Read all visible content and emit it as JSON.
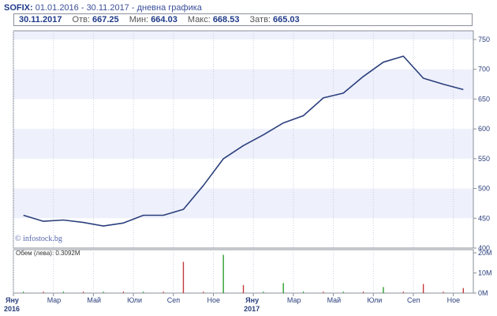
{
  "header": {
    "symbol": "SOFIX:",
    "subtitle": "01.01.2016 - 30.11.2017 - дневна графика"
  },
  "info": {
    "date": "30.11.2017",
    "open_label": "Отв:",
    "open_value": "667.25",
    "min_label": "Мин:",
    "min_value": "664.03",
    "max_label": "Макс:",
    "max_value": "668.53",
    "close_label": "Затв:",
    "close_value": "665.03"
  },
  "watermark": "© infostock.bg",
  "volume_label": "Обем (лева): 0.3092M",
  "colors": {
    "line": "#2b3f7c",
    "band_light": "#ffffff",
    "band_shade": "#eef0fb",
    "grid": "#c8cbe0",
    "axis_text": "#2b3f7c",
    "vol_up": "#2e9e2e",
    "vol_down": "#c23a3a"
  },
  "chart_data": [
    {
      "type": "line",
      "title": "SOFIX",
      "x": [
        "2016-01",
        "2016-02",
        "2016-03",
        "2016-04",
        "2016-05",
        "2016-06",
        "2016-07",
        "2016-08",
        "2016-09",
        "2016-10",
        "2016-11",
        "2016-12",
        "2017-01",
        "2017-02",
        "2017-03",
        "2017-04",
        "2017-05",
        "2017-06",
        "2017-07",
        "2017-08",
        "2017-09",
        "2017-10",
        "2017-11"
      ],
      "y": [
        455,
        445,
        447,
        443,
        437,
        442,
        455,
        455,
        465,
        505,
        550,
        572,
        590,
        610,
        622,
        652,
        660,
        688,
        712,
        722,
        685,
        675,
        666
      ],
      "ylim": [
        400,
        750
      ],
      "yticks": [
        "750",
        "700",
        "650",
        "600",
        "550",
        "500",
        "450",
        "400"
      ],
      "xtick_labels": [
        "Яну",
        "Мар",
        "Май",
        "Юли",
        "Сеп",
        "Ное",
        "Яну",
        "Мар",
        "Май",
        "Юли",
        "Сеп",
        "Ное"
      ],
      "year_labels": [
        "2016",
        "2017"
      ],
      "grid": true
    },
    {
      "type": "bar",
      "title": "Обем (лева): 0.3092M",
      "ylim": [
        0,
        20
      ],
      "yticks": [
        "20M",
        "10M",
        "0M"
      ],
      "spikes": [
        {
          "month": "2016-09",
          "value": 15.5,
          "dir": "down"
        },
        {
          "month": "2016-11",
          "value": 19,
          "dir": "up"
        },
        {
          "month": "2016-12",
          "value": 4,
          "dir": "down"
        },
        {
          "month": "2017-02",
          "value": 5,
          "dir": "up"
        },
        {
          "month": "2017-07",
          "value": 3,
          "dir": "up"
        },
        {
          "month": "2017-09",
          "value": 4.5,
          "dir": "down"
        },
        {
          "month": "2017-11",
          "value": 2.5,
          "dir": "down"
        }
      ],
      "baseline": 0.8
    }
  ]
}
